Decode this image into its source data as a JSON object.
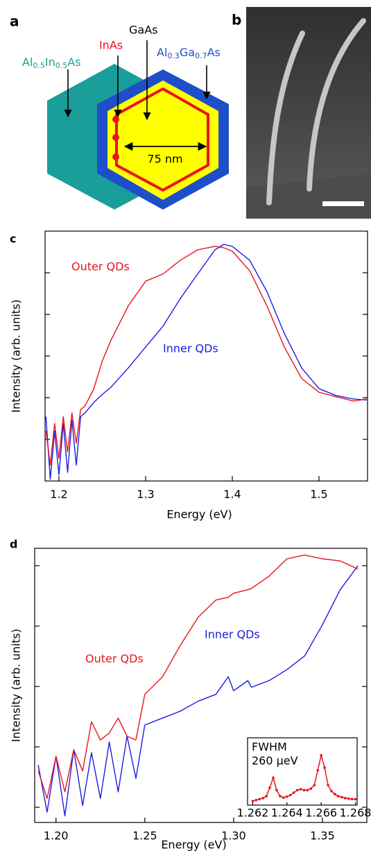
{
  "diagram": {
    "panel_label": "a",
    "labels": [
      "Al0.5In0.5As",
      "InAs",
      "GaAs",
      "Al0.3Ga0.7As"
    ],
    "dimension": "75 nm"
  },
  "micrograph": {
    "panel_label": "b"
  },
  "chart_data": [
    {
      "type": "line",
      "panel_label": "c",
      "x_label": "Energy (eV)",
      "y_label": "Intensity (arb. units)",
      "log_scale": true,
      "xlim": [
        1.184,
        1.556
      ],
      "xticks": [
        1.2,
        1.3,
        1.4,
        1.5
      ],
      "ylim": [
        1,
        1000000
      ],
      "yticks": [
        10,
        100,
        1000,
        10000,
        100000
      ],
      "x": [
        1.185,
        1.19,
        1.195,
        1.2,
        1.205,
        1.21,
        1.215,
        1.22,
        1.225,
        1.23,
        1.24,
        1.25,
        1.26,
        1.28,
        1.3,
        1.32,
        1.34,
        1.36,
        1.38,
        1.39,
        1.4,
        1.42,
        1.44,
        1.46,
        1.48,
        1.5,
        1.52,
        1.54,
        1.555
      ],
      "series": [
        {
          "name": "Inner QDs",
          "color": "#1c1ce0",
          "values": [
            35,
            1.1,
            16,
            1.4,
            24,
            1.6,
            29,
            2.4,
            35,
            43,
            76,
            120,
            178,
            520,
            1650,
            5200,
            24000,
            93000,
            355000,
            480000,
            430000,
            200000,
            35000,
            3500,
            520,
            165,
            112,
            93,
            88
          ]
        },
        {
          "name": "Outer QDs",
          "color": "#e8141c",
          "values": [
            16,
            2.4,
            24,
            3.5,
            35,
            5,
            43,
            8,
            52,
            63,
            160,
            760,
            2400,
            16000,
            63000,
            93000,
            200000,
            355000,
            430000,
            400000,
            330000,
            112000,
            16000,
            1650,
            290,
            135,
            105,
            83,
            93
          ]
        }
      ]
    },
    {
      "type": "line",
      "panel_label": "d",
      "x_label": "Energy (eV)",
      "y_label": "Intensity (arb. units)",
      "log_scale": true,
      "xlim": [
        1.188,
        1.375
      ],
      "xticks": [
        {
          "value": 1.2,
          "label": "1.20"
        },
        {
          "value": 1.25,
          "label": "1.25"
        },
        {
          "value": 1.3,
          "label": "1.30"
        },
        {
          "value": 1.35,
          "label": "1.35"
        }
      ],
      "ylim": [
        0.56,
        19400
      ],
      "yticks": [
        1,
        10,
        100,
        1000,
        10000
      ],
      "x": [
        1.19,
        1.195,
        1.2,
        1.205,
        1.21,
        1.215,
        1.22,
        1.225,
        1.23,
        1.235,
        1.24,
        1.245,
        1.25,
        1.26,
        1.27,
        1.28,
        1.29,
        1.297,
        1.3,
        1.308,
        1.31,
        1.32,
        1.33,
        1.34,
        1.35,
        1.36,
        1.37
      ],
      "series": [
        {
          "name": "Inner QDs",
          "color": "#1c1ce0",
          "values": [
            5,
            0.83,
            7,
            0.72,
            9,
            1.07,
            8,
            1.4,
            12,
            1.8,
            15,
            3,
            23,
            30,
            39,
            57,
            74,
            145,
            85,
            125,
            97,
            125,
            190,
            320,
            1050,
            4000,
            10000
          ]
        },
        {
          "name": "Outer QDs",
          "color": "#e8141c",
          "values": [
            4,
            1.4,
            7,
            1.8,
            9,
            4,
            26,
            13,
            17,
            30,
            15,
            13,
            74,
            145,
            480,
            1400,
            2700,
            3000,
            3500,
            4000,
            4200,
            6700,
            13000,
            15000,
            13000,
            12000,
            8800
          ]
        }
      ]
    },
    {
      "type": "line",
      "annotation": [
        "FWHM",
        "260 µeV"
      ],
      "markers": true,
      "xlim": [
        1.2617,
        1.2681
      ],
      "xticks": [
        1.262,
        1.264,
        1.266,
        1.268
      ],
      "ylim": [
        0,
        1.35
      ],
      "x": [
        1.262,
        1.2622,
        1.2624,
        1.2626,
        1.2628,
        1.263,
        1.2632,
        1.2634,
        1.2636,
        1.2638,
        1.264,
        1.2642,
        1.2644,
        1.2646,
        1.2648,
        1.265,
        1.2652,
        1.2654,
        1.2656,
        1.2658,
        1.266,
        1.2662,
        1.2664,
        1.2666,
        1.2668,
        1.267,
        1.2672,
        1.2674,
        1.2676,
        1.2678,
        1.268
      ],
      "series": [
        {
          "color": "#e8141c",
          "values": [
            0.08,
            0.1,
            0.12,
            0.14,
            0.18,
            0.35,
            0.55,
            0.3,
            0.18,
            0.15,
            0.17,
            0.2,
            0.25,
            0.3,
            0.32,
            0.3,
            0.3,
            0.33,
            0.4,
            0.7,
            1.0,
            0.75,
            0.4,
            0.28,
            0.22,
            0.18,
            0.16,
            0.14,
            0.13,
            0.12,
            0.12
          ]
        }
      ]
    }
  ]
}
